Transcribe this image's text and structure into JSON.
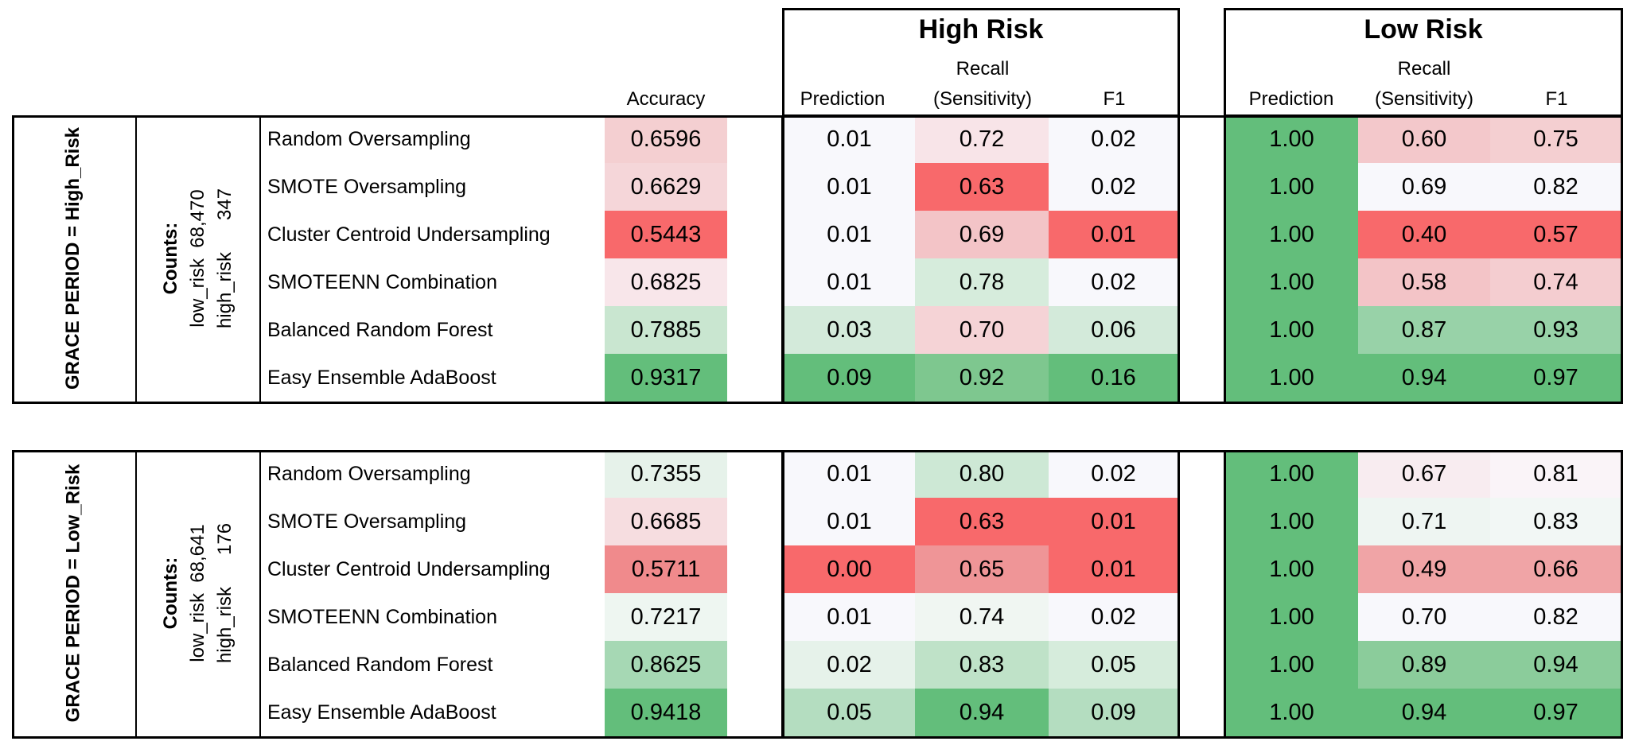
{
  "headers": {
    "accuracy": "Accuracy",
    "high_risk_title": "High Risk",
    "low_risk_title": "Low Risk",
    "prediction": "Prediction",
    "recall_line1": "Recall",
    "recall_line2": "(Sensitivity)",
    "f1": "F1"
  },
  "sections": [
    {
      "grace_label": "GRACE PERIOD = High_Risk",
      "counts_title": "Counts:",
      "counts_low": "low_risk  68,470",
      "counts_high": "high_risk      347",
      "rows": [
        {
          "model": "Random Oversampling",
          "accuracy": "0.6596",
          "hr_pred": "0.01",
          "hr_recall": "0.72",
          "hr_f1": "0.02",
          "lr_pred": "1.00",
          "lr_recall": "0.60",
          "lr_f1": "0.75",
          "colors": [
            "#f4cfd1",
            "#f8f8fc",
            "#f8e4e8",
            "#f8f8fc",
            "#63be7b",
            "#f3c8cb",
            "#f4cfd1"
          ]
        },
        {
          "model": "SMOTE Oversampling",
          "accuracy": "0.6629",
          "hr_pred": "0.01",
          "hr_recall": "0.63",
          "hr_f1": "0.02",
          "lr_pred": "1.00",
          "lr_recall": "0.69",
          "lr_f1": "0.82",
          "colors": [
            "#f5d6d9",
            "#f8f8fc",
            "#f8696b",
            "#f8f8fc",
            "#63be7b",
            "#f8f8fc",
            "#f8f8fc"
          ]
        },
        {
          "model": "Cluster Centroid Undersampling",
          "accuracy": "0.5443",
          "hr_pred": "0.01",
          "hr_recall": "0.69",
          "hr_f1": "0.01",
          "lr_pred": "1.00",
          "lr_recall": "0.40",
          "lr_f1": "0.57",
          "colors": [
            "#f8696b",
            "#f8f8fc",
            "#f3c4c7",
            "#f8696b",
            "#63be7b",
            "#f8696b",
            "#f8696b"
          ]
        },
        {
          "model": "SMOTEENN Combination",
          "accuracy": "0.6825",
          "hr_pred": "0.01",
          "hr_recall": "0.78",
          "hr_f1": "0.02",
          "lr_pred": "1.00",
          "lr_recall": "0.58",
          "lr_f1": "0.74",
          "colors": [
            "#f8e6ea",
            "#f8f8fc",
            "#d6ecdc",
            "#f8f8fc",
            "#63be7b",
            "#f3c4c7",
            "#f4cdd0"
          ]
        },
        {
          "model": "Balanced Random Forest",
          "accuracy": "0.7885",
          "hr_pred": "0.03",
          "hr_recall": "0.70",
          "hr_f1": "0.06",
          "lr_pred": "1.00",
          "lr_recall": "0.87",
          "lr_f1": "0.93",
          "colors": [
            "#c9e6d0",
            "#d3eada",
            "#f5d3d6",
            "#d3eada",
            "#63be7b",
            "#98d2a8",
            "#98d2a8"
          ]
        },
        {
          "model": "Easy Ensemble AdaBoost",
          "accuracy": "0.9317",
          "hr_pred": "0.09",
          "hr_recall": "0.92",
          "hr_f1": "0.16",
          "lr_pred": "1.00",
          "lr_recall": "0.94",
          "lr_f1": "0.97",
          "colors": [
            "#63be7b",
            "#63be7b",
            "#7ec78f",
            "#63be7b",
            "#63be7b",
            "#63be7b",
            "#63be7b"
          ]
        }
      ]
    },
    {
      "grace_label": "GRACE PERIOD = Low_Risk",
      "counts_title": "Counts:",
      "counts_low": "low_risk  68,641",
      "counts_high": "high_risk      176",
      "rows": [
        {
          "model": "Random Oversampling",
          "accuracy": "0.7355",
          "hr_pred": "0.01",
          "hr_recall": "0.80",
          "hr_f1": "0.02",
          "lr_pred": "1.00",
          "lr_recall": "0.67",
          "lr_f1": "0.81",
          "colors": [
            "#e6f2ea",
            "#f8f8fc",
            "#cde8d5",
            "#f8f8fc",
            "#63be7b",
            "#f8ecf0",
            "#faf4f8"
          ]
        },
        {
          "model": "SMOTE Oversampling",
          "accuracy": "0.6685",
          "hr_pred": "0.01",
          "hr_recall": "0.63",
          "hr_f1": "0.01",
          "lr_pred": "1.00",
          "lr_recall": "0.71",
          "lr_f1": "0.83",
          "colors": [
            "#f6dde0",
            "#f8f8fc",
            "#f8696b",
            "#f8696b",
            "#63be7b",
            "#eef5f2",
            "#f2f7f5"
          ]
        },
        {
          "model": "Cluster Centroid Undersampling",
          "accuracy": "0.5711",
          "hr_pred": "0.00",
          "hr_recall": "0.65",
          "hr_f1": "0.01",
          "lr_pred": "1.00",
          "lr_recall": "0.49",
          "lr_f1": "0.66",
          "colors": [
            "#f08a8c",
            "#f8696b",
            "#ef9597",
            "#f8696b",
            "#63be7b",
            "#f0a4a6",
            "#f0a4a6"
          ]
        },
        {
          "model": "SMOTEENN Combination",
          "accuracy": "0.7217",
          "hr_pred": "0.01",
          "hr_recall": "0.74",
          "hr_f1": "0.02",
          "lr_pred": "1.00",
          "lr_recall": "0.70",
          "lr_f1": "0.82",
          "colors": [
            "#eef6f1",
            "#f8f8fc",
            "#f0f6f2",
            "#f8f8fc",
            "#63be7b",
            "#f8f8fc",
            "#f8f8fc"
          ]
        },
        {
          "model": "Balanced Random Forest",
          "accuracy": "0.8625",
          "hr_pred": "0.02",
          "hr_recall": "0.83",
          "hr_f1": "0.05",
          "lr_pred": "1.00",
          "lr_recall": "0.89",
          "lr_f1": "0.94",
          "colors": [
            "#a6d8b4",
            "#e6f2ea",
            "#bfe2c8",
            "#d6ecdc",
            "#63be7b",
            "#8bcc9b",
            "#8bcc9b"
          ]
        },
        {
          "model": "Easy Ensemble AdaBoost",
          "accuracy": "0.9418",
          "hr_pred": "0.05",
          "hr_recall": "0.94",
          "hr_f1": "0.09",
          "lr_pred": "1.00",
          "lr_recall": "0.94",
          "lr_f1": "0.97",
          "colors": [
            "#63be7b",
            "#b4ddc0",
            "#63be7b",
            "#b4ddc0",
            "#63be7b",
            "#63be7b",
            "#63be7b"
          ]
        }
      ]
    }
  ]
}
